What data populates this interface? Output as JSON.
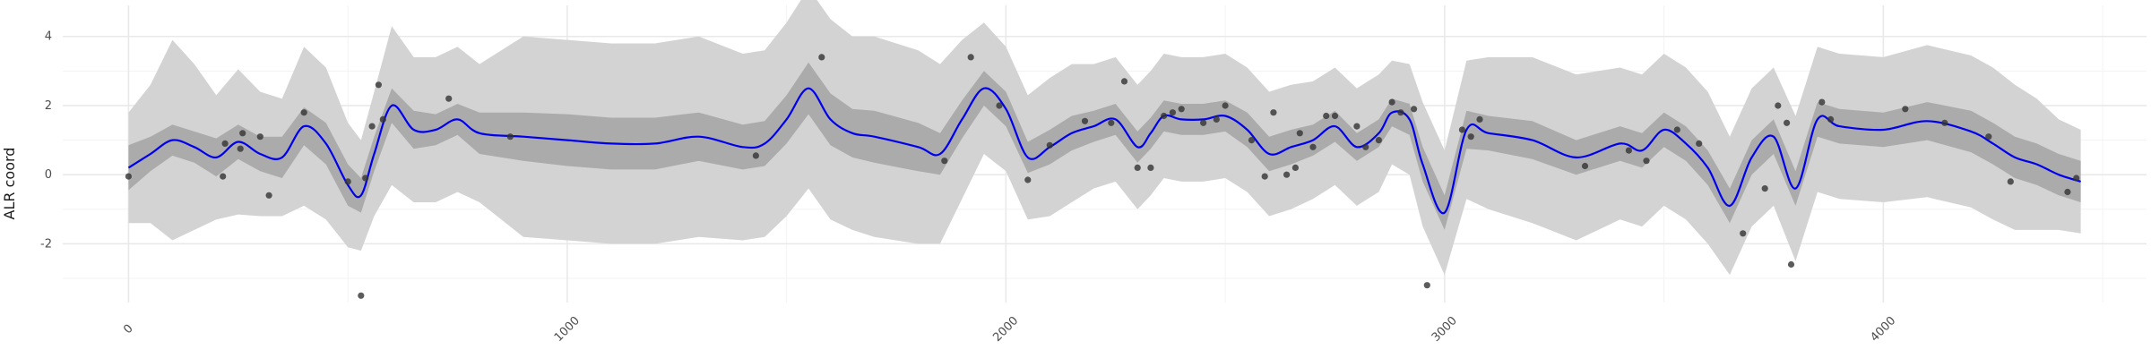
{
  "chart_data": {
    "type": "line",
    "title": "",
    "xlabel": "",
    "ylabel": "ALR coord",
    "xlim": [
      -150,
      4600
    ],
    "ylim": [
      -3.7,
      4.9
    ],
    "x_ticks": [
      0,
      1000,
      2000,
      3000,
      4000
    ],
    "x_tick_labels": [
      "0",
      "1000",
      "2000",
      "3000",
      "4000"
    ],
    "x_minor_ticks": [
      500,
      1500,
      2500,
      3500,
      4500
    ],
    "y_ticks": [
      -2,
      0,
      2,
      4
    ],
    "y_tick_labels": [
      "-2",
      "0",
      "2",
      "4"
    ],
    "y_minor_ticks": [
      -3,
      -1,
      1,
      3
    ],
    "grid": true,
    "legend": "none",
    "colors": {
      "mean_line": "#0000ee",
      "inner_band": "#ababab",
      "outer_band": "#d3d3d3",
      "points": "#333333"
    },
    "series": [
      {
        "kind": "line",
        "x": [
          0,
          50,
          100,
          150,
          200,
          250,
          300,
          350,
          400,
          450,
          500,
          530,
          560,
          600,
          650,
          700,
          750,
          800,
          900,
          1000,
          1100,
          1200,
          1300,
          1400,
          1450,
          1500,
          1550,
          1600,
          1650,
          1700,
          1800,
          1850,
          1900,
          1950,
          2000,
          2050,
          2100,
          2150,
          2200,
          2250,
          2300,
          2330,
          2360,
          2400,
          2450,
          2500,
          2550,
          2600,
          2650,
          2700,
          2750,
          2800,
          2850,
          2880,
          2920,
          2950,
          3000,
          3050,
          3100,
          3200,
          3300,
          3400,
          3450,
          3500,
          3550,
          3600,
          3650,
          3700,
          3750,
          3800,
          3850,
          3900,
          4000,
          4100,
          4200,
          4250,
          4300,
          4350,
          4400,
          4450
        ],
        "y": [
          0.2,
          0.6,
          1.0,
          0.8,
          0.5,
          0.95,
          0.6,
          0.5,
          1.4,
          0.9,
          -0.3,
          -0.6,
          0.6,
          2.0,
          1.3,
          1.3,
          1.6,
          1.2,
          1.1,
          1.0,
          0.9,
          0.9,
          1.1,
          0.8,
          0.9,
          1.6,
          2.5,
          1.6,
          1.2,
          1.1,
          0.8,
          0.6,
          1.6,
          2.5,
          1.9,
          0.5,
          0.8,
          1.2,
          1.4,
          1.6,
          0.8,
          1.2,
          1.7,
          1.6,
          1.6,
          1.7,
          1.3,
          0.6,
          0.8,
          1.0,
          1.4,
          0.8,
          1.2,
          1.8,
          1.6,
          0.3,
          -1.1,
          1.3,
          1.2,
          1.0,
          0.5,
          0.9,
          0.7,
          1.3,
          0.9,
          0.2,
          -0.9,
          0.5,
          1.1,
          -0.4,
          1.6,
          1.4,
          1.3,
          1.55,
          1.25,
          0.9,
          0.5,
          0.3,
          0.0,
          -0.2
        ],
        "band_inner_halfwidth": [
          0.65,
          0.5,
          0.45,
          0.45,
          0.55,
          0.5,
          0.5,
          0.6,
          0.55,
          0.6,
          0.6,
          0.5,
          0.5,
          0.5,
          0.55,
          0.45,
          0.45,
          0.6,
          0.7,
          0.75,
          0.75,
          0.75,
          0.7,
          0.65,
          0.65,
          0.7,
          0.75,
          0.75,
          0.7,
          0.75,
          0.7,
          0.6,
          0.55,
          0.5,
          0.5,
          0.45,
          0.5,
          0.5,
          0.45,
          0.45,
          0.45,
          0.45,
          0.45,
          0.45,
          0.45,
          0.45,
          0.5,
          0.5,
          0.5,
          0.45,
          0.45,
          0.4,
          0.4,
          0.4,
          0.45,
          0.5,
          0.5,
          0.55,
          0.5,
          0.55,
          0.5,
          0.5,
          0.5,
          0.5,
          0.5,
          0.5,
          0.5,
          0.5,
          0.5,
          0.5,
          0.5,
          0.5,
          0.5,
          0.55,
          0.6,
          0.6,
          0.6,
          0.6,
          0.6,
          0.6
        ],
        "band_outer_halfwidth": [
          1.6,
          2.0,
          2.9,
          2.4,
          1.8,
          2.1,
          1.8,
          1.7,
          2.3,
          2.2,
          1.8,
          1.6,
          1.8,
          2.3,
          2.1,
          2.1,
          2.1,
          2.0,
          2.9,
          2.9,
          2.9,
          2.9,
          2.9,
          2.7,
          2.7,
          2.8,
          2.9,
          2.9,
          2.8,
          2.9,
          2.8,
          2.6,
          2.3,
          1.9,
          1.8,
          1.8,
          2.0,
          2.0,
          1.8,
          1.8,
          1.8,
          1.8,
          1.8,
          1.8,
          1.8,
          1.8,
          1.8,
          1.8,
          1.8,
          1.7,
          1.7,
          1.7,
          1.7,
          1.5,
          1.6,
          1.8,
          1.8,
          2.0,
          2.2,
          2.4,
          2.4,
          2.2,
          2.2,
          2.2,
          2.2,
          2.2,
          2.0,
          2.0,
          2.0,
          2.1,
          2.1,
          2.1,
          2.1,
          2.2,
          2.2,
          2.2,
          2.1,
          1.9,
          1.6,
          1.5
        ]
      },
      {
        "kind": "scatter",
        "x": [
          0,
          215,
          220,
          255,
          260,
          300,
          320,
          400,
          500,
          530,
          540,
          555,
          570,
          580,
          730,
          870,
          1430,
          1580,
          1860,
          1920,
          1985,
          2050,
          2100,
          2180,
          2240,
          2270,
          2300,
          2330,
          2360,
          2380,
          2400,
          2450,
          2480,
          2500,
          2560,
          2590,
          2610,
          2640,
          2660,
          2670,
          2700,
          2730,
          2750,
          2800,
          2820,
          2850,
          2880,
          2900,
          2930,
          2960,
          3040,
          3060,
          3080,
          3320,
          3420,
          3460,
          3530,
          3580,
          3680,
          3730,
          3760,
          3780,
          3790,
          3860,
          3880,
          4050,
          4140,
          4240,
          4290,
          4420,
          4440
        ],
        "y": [
          -0.05,
          -0.05,
          0.9,
          0.75,
          1.2,
          1.1,
          -0.6,
          1.8,
          -0.2,
          -3.5,
          -0.1,
          1.4,
          2.6,
          1.6,
          2.2,
          1.1,
          0.55,
          3.4,
          0.4,
          3.4,
          2.0,
          -0.15,
          0.85,
          1.55,
          1.5,
          2.7,
          0.2,
          0.2,
          1.7,
          1.8,
          1.9,
          1.5,
          1.6,
          2.0,
          1.0,
          -0.05,
          1.8,
          0.0,
          0.2,
          1.2,
          0.8,
          1.7,
          1.7,
          1.4,
          0.8,
          1.0,
          2.1,
          1.8,
          1.9,
          -3.2,
          1.3,
          1.1,
          1.6,
          0.25,
          0.7,
          0.4,
          1.3,
          0.9,
          -1.7,
          -0.4,
          2.0,
          1.5,
          -2.6,
          2.1,
          1.6,
          1.9,
          1.5,
          1.1,
          -0.2,
          -0.5,
          -0.1
        ]
      }
    ]
  }
}
